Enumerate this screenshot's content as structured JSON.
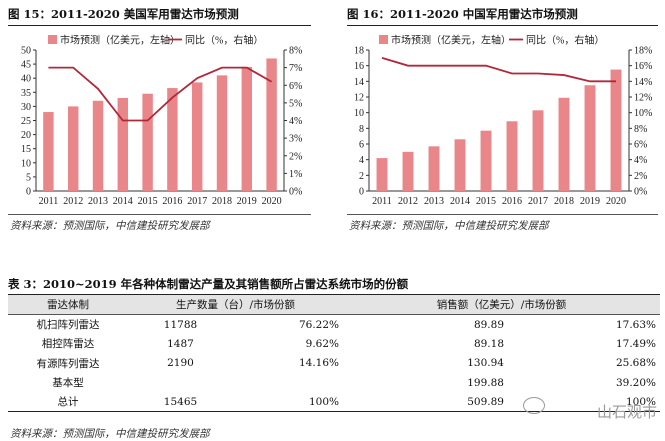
{
  "figures": [
    {
      "title": "图 15：2011-2020 美国军用雷达市场预测",
      "source": "资料来源：预测国际，中信建投研究发展部",
      "chart_data": {
        "type": "bar+line",
        "categories": [
          "2011",
          "2012",
          "2013",
          "2014",
          "2015",
          "2016",
          "2017",
          "2018",
          "2019",
          "2020"
        ],
        "series": [
          {
            "name": "市场预测（亿美元，左轴）",
            "type": "bar",
            "axis": "left",
            "values": [
              28,
              30,
              32,
              33,
              34.5,
              36.5,
              38.5,
              41,
              44,
              47
            ]
          },
          {
            "name": "同比（%，右轴）",
            "type": "line",
            "axis": "right",
            "values": [
              7.0,
              7.0,
              5.8,
              4.0,
              4.0,
              5.3,
              6.4,
              7.0,
              7.0,
              6.2
            ]
          }
        ],
        "ylim_left": [
          0,
          50
        ],
        "yticks_left": [
          0,
          5,
          10,
          15,
          20,
          25,
          30,
          35,
          40,
          45,
          50
        ],
        "ylim_right": [
          0,
          8
        ],
        "yticks_right": [
          "0%",
          "1%",
          "2%",
          "3%",
          "4%",
          "5%",
          "6%",
          "7%",
          "8%"
        ],
        "colors": {
          "bar": "#e8868a",
          "line": "#b0283a"
        }
      }
    },
    {
      "title": "图 16：2011-2020 中国军用雷达市场预测",
      "source": "资料来源：预测国际，中信建投研究发展部",
      "chart_data": {
        "type": "bar+line",
        "categories": [
          "2011",
          "2012",
          "2013",
          "2014",
          "2015",
          "2016",
          "2017",
          "2018",
          "2019",
          "2020"
        ],
        "series": [
          {
            "name": "市场预测（亿美元，左轴）",
            "type": "bar",
            "axis": "left",
            "values": [
              4.2,
              5.0,
              5.7,
              6.6,
              7.7,
              8.9,
              10.3,
              11.9,
              13.5,
              15.5
            ]
          },
          {
            "name": "同比（%，右轴）",
            "type": "line",
            "axis": "right",
            "values": [
              17.0,
              16.0,
              16.0,
              16.0,
              16.0,
              15.0,
              15.0,
              14.8,
              14.0,
              14.0
            ]
          }
        ],
        "ylim_left": [
          0,
          18
        ],
        "yticks_left": [
          0,
          2,
          4,
          6,
          8,
          10,
          12,
          14,
          16,
          18
        ],
        "ylim_right": [
          0,
          18
        ],
        "yticks_right": [
          "0%",
          "2%",
          "4%",
          "6%",
          "8%",
          "10%",
          "12%",
          "14%",
          "16%",
          "18%"
        ],
        "colors": {
          "bar": "#e8868a",
          "line": "#b0283a"
        }
      }
    }
  ],
  "table": {
    "title": "表 3：2010~2019 年各种体制雷达产量及其销售额所占雷达系统市场的份额",
    "headers": {
      "type": "雷达体制",
      "production": "生产数量（台）/市场份额",
      "sales": "销售额（亿美元）/市场份额"
    },
    "rows": [
      {
        "name": "机扫阵列雷达",
        "units": "11788",
        "units_share": "76.22%",
        "sales": "89.89",
        "sales_share": "17.63%"
      },
      {
        "name": "相控阵雷达",
        "units": "1487",
        "units_share": "9.62%",
        "sales": "89.18",
        "sales_share": "17.49%"
      },
      {
        "name": "有源阵列雷达",
        "units": "2190",
        "units_share": "14.16%",
        "sales": "130.94",
        "sales_share": "25.68%"
      },
      {
        "name": "基本型",
        "units": "",
        "units_share": "",
        "sales": "199.88",
        "sales_share": "39.20%"
      },
      {
        "name": "总计",
        "units": "15465",
        "units_share": "100%",
        "sales": "509.89",
        "sales_share": "100%"
      }
    ],
    "source": "资料来源：预测国际，中信建投研究发展部"
  },
  "watermark": "山石观市"
}
